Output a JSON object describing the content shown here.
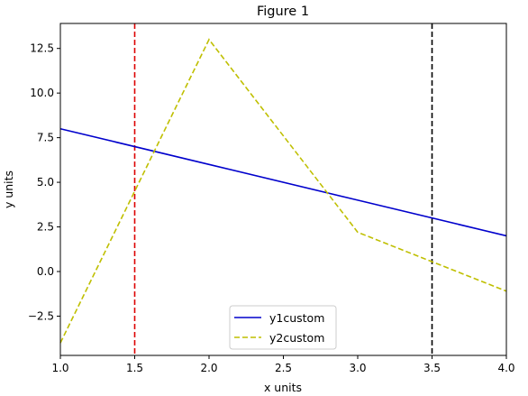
{
  "window": {
    "title": "Figure 1"
  },
  "chart_data": {
    "type": "line",
    "title": "Figure 1",
    "xlabel": "x units",
    "ylabel": "y units",
    "xlim": [
      1.0,
      4.0
    ],
    "ylim": [
      -4.7,
      13.9
    ],
    "xticks": [
      1.0,
      1.5,
      2.0,
      2.5,
      3.0,
      3.5,
      4.0
    ],
    "xtick_labels": [
      "1.0",
      "1.5",
      "2.0",
      "2.5",
      "3.0",
      "3.5",
      "4.0"
    ],
    "yticks": [
      -2.5,
      0.0,
      2.5,
      5.0,
      7.5,
      10.0,
      12.5
    ],
    "ytick_labels": [
      "−2.5",
      "0.0",
      "2.5",
      "5.0",
      "7.5",
      "10.0",
      "12.5"
    ],
    "grid": false,
    "legend_position": "bottom-center",
    "series": [
      {
        "name": "y1custom",
        "x": [
          1,
          2,
          3,
          4
        ],
        "y": [
          8,
          6,
          4,
          2
        ],
        "color": "#0000cc",
        "style": "solid"
      },
      {
        "name": "y2custom",
        "x": [
          1,
          2,
          3,
          4
        ],
        "y": [
          -4,
          13,
          2.2,
          -1.1
        ],
        "color": "#bfbf00",
        "style": "dashed"
      }
    ],
    "vlines": [
      {
        "x": 1.5,
        "color": "#dd0000",
        "style": "dashed"
      },
      {
        "x": 3.5,
        "color": "#000000",
        "style": "dashed"
      }
    ]
  }
}
